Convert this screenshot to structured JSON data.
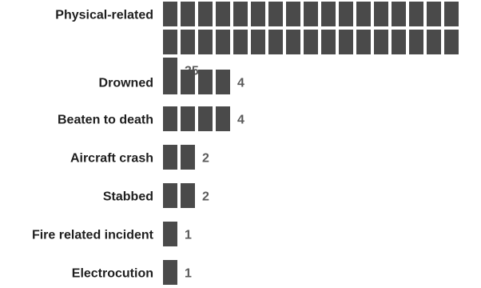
{
  "chart_data": {
    "type": "bar",
    "orientation": "horizontal",
    "style": "unit blocks (one block per count)",
    "categories": [
      "Physical-related",
      "Drowned",
      "Beaten to death",
      "Aircraft crash",
      "Stabbed",
      "Fire related incident",
      "Electrocution"
    ],
    "values": [
      35,
      4,
      4,
      2,
      2,
      1,
      1
    ],
    "value_labels": [
      "35",
      "4",
      "4",
      "2",
      "2",
      "1",
      "1"
    ],
    "title": "",
    "xlabel": "",
    "ylabel": "",
    "grid": false,
    "legend": false,
    "colors": {
      "block": "#4a4a4a",
      "category_text": "#1e1e1e",
      "value_text": "#5a5a5a"
    }
  }
}
